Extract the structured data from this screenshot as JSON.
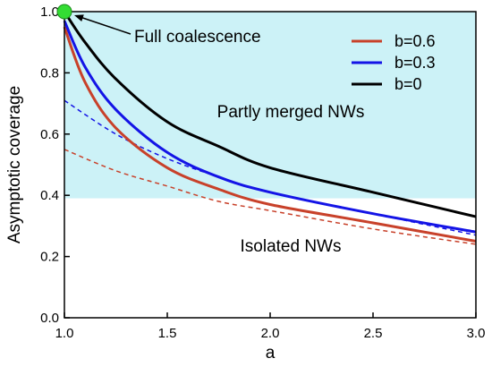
{
  "chart_data": {
    "type": "line",
    "title": "",
    "xlabel": "a",
    "ylabel": "Asymptotic coverage",
    "xlim": [
      1.0,
      3.0
    ],
    "ylim": [
      0.0,
      1.0
    ],
    "xticks": [
      "1.0",
      "1.5",
      "2.0",
      "2.5",
      "3.0"
    ],
    "yticks": [
      "0.0",
      "0.2",
      "0.4",
      "0.6",
      "0.8",
      "1.0"
    ],
    "grid": false,
    "legend_position": "top-right",
    "regions": [
      {
        "label": "Partly merged NWs",
        "y_range": [
          0.39,
          1.0
        ],
        "color": "#ccf2f7"
      },
      {
        "label": "Isolated NWs",
        "y_range": [
          0.0,
          0.39
        ],
        "color": "#ffffff"
      }
    ],
    "annotations": [
      {
        "text": "Full coalescence",
        "point": [
          1.0,
          1.0
        ],
        "marker_color": "#33dd33"
      }
    ],
    "series": [
      {
        "name": "b=0.6",
        "color": "#c8412a",
        "style": "solid",
        "x": [
          1.0,
          1.1,
          1.25,
          1.5,
          1.75,
          2.0,
          2.5,
          3.0
        ],
        "y": [
          0.95,
          0.77,
          0.62,
          0.49,
          0.42,
          0.37,
          0.31,
          0.25
        ]
      },
      {
        "name": "b=0.3",
        "color": "#1414e6",
        "style": "solid",
        "x": [
          1.0,
          1.1,
          1.25,
          1.5,
          1.75,
          2.0,
          2.5,
          3.0
        ],
        "y": [
          0.97,
          0.82,
          0.68,
          0.54,
          0.46,
          0.41,
          0.34,
          0.28
        ]
      },
      {
        "name": "b=0",
        "color": "#000000",
        "style": "solid",
        "x": [
          1.0,
          1.1,
          1.25,
          1.5,
          1.75,
          2.0,
          2.5,
          3.0
        ],
        "y": [
          1.0,
          0.9,
          0.78,
          0.64,
          0.56,
          0.49,
          0.41,
          0.33
        ]
      },
      {
        "name": "",
        "color": "#1414e6",
        "style": "dashed",
        "x": [
          1.0,
          1.25,
          1.5,
          1.75,
          2.0,
          2.5,
          3.0
        ],
        "y": [
          0.71,
          0.6,
          0.52,
          0.46,
          0.41,
          0.34,
          0.27
        ]
      },
      {
        "name": "",
        "color": "#c8412a",
        "style": "dashed",
        "x": [
          1.0,
          1.25,
          1.5,
          1.75,
          2.0,
          2.5,
          3.0
        ],
        "y": [
          0.55,
          0.48,
          0.43,
          0.38,
          0.35,
          0.29,
          0.24
        ]
      }
    ]
  }
}
